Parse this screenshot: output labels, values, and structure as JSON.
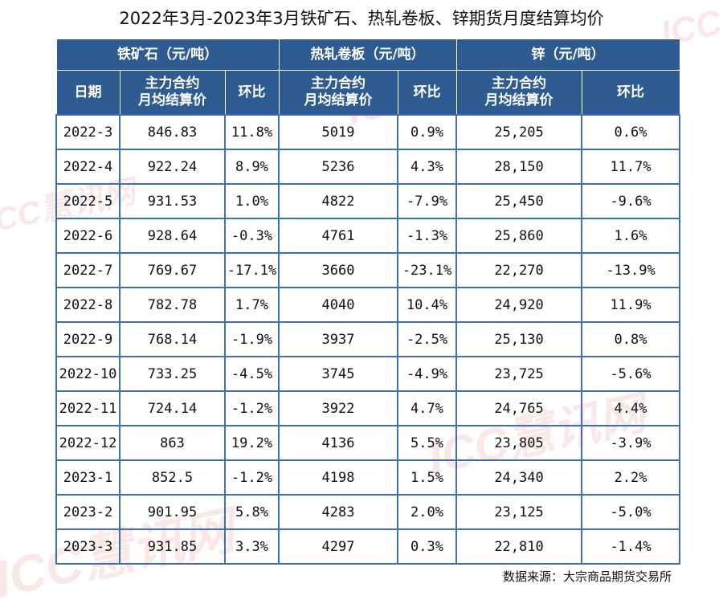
{
  "title": "2022年3月-2023年3月铁矿石、热轧卷板、锌期货月度结算均价",
  "source": "数据来源：大宗商品期货交易所",
  "watermark": "ICC慧讯网",
  "colors": {
    "header_bg": "#2e5b91",
    "header_text": "#ffffff",
    "border": "#3e6db3",
    "watermark": "#d9232a"
  },
  "chart_data": {
    "type": "table",
    "groups": [
      {
        "label": "铁矿石（元/吨）",
        "span": 3
      },
      {
        "label": "热轧卷板（元/吨）",
        "span": 2
      },
      {
        "label": "锌（元/吨）",
        "span": 2
      }
    ],
    "columns": [
      "日期",
      "主力合约\n月均结算价",
      "环比",
      "主力合约\n月均结算价",
      "环比",
      "主力合约\n月均结算价",
      "环比"
    ],
    "rows": [
      [
        "2022-3",
        "846.83",
        "11.8%",
        "5019",
        "0.9%",
        "25,205",
        "0.6%"
      ],
      [
        "2022-4",
        "922.24",
        "8.9%",
        "5236",
        "4.3%",
        "28,150",
        "11.7%"
      ],
      [
        "2022-5",
        "931.53",
        "1.0%",
        "4822",
        "-7.9%",
        "25,450",
        "-9.6%"
      ],
      [
        "2022-6",
        "928.64",
        "-0.3%",
        "4761",
        "-1.3%",
        "25,860",
        "1.6%"
      ],
      [
        "2022-7",
        "769.67",
        "-17.1%",
        "3660",
        "-23.1%",
        "22,270",
        "-13.9%"
      ],
      [
        "2022-8",
        "782.78",
        "1.7%",
        "4040",
        "10.4%",
        "24,920",
        "11.9%"
      ],
      [
        "2022-9",
        "768.14",
        "-1.9%",
        "3937",
        "-2.5%",
        "25,130",
        "0.8%"
      ],
      [
        "2022-10",
        "733.25",
        "-4.5%",
        "3745",
        "-4.9%",
        "23,725",
        "-5.6%"
      ],
      [
        "2022-11",
        "724.14",
        "-1.2%",
        "3922",
        "4.7%",
        "24,765",
        "4.4%"
      ],
      [
        "2022-12",
        "863",
        "19.2%",
        "4136",
        "5.5%",
        "23,805",
        "-3.9%"
      ],
      [
        "2023-1",
        "852.5",
        "-1.2%",
        "4198",
        "1.5%",
        "24,340",
        "2.2%"
      ],
      [
        "2023-2",
        "901.95",
        "5.8%",
        "4283",
        "2.0%",
        "23,125",
        "-5.0%"
      ],
      [
        "2023-3",
        "931.85",
        "3.3%",
        "4297",
        "0.3%",
        "22,810",
        "-1.4%"
      ]
    ]
  }
}
